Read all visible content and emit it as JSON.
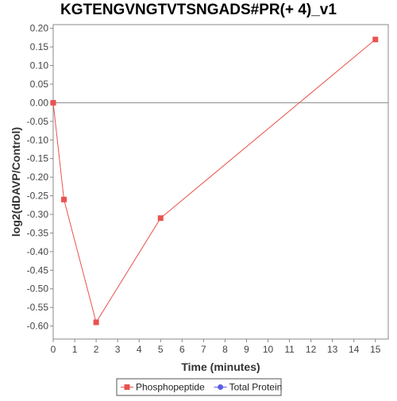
{
  "chart_data": {
    "type": "line",
    "title": "KGTENGVNGTVTSNGADS#PR(+ 4)_v1",
    "xlabel": "Time (minutes)",
    "ylabel": "log2(dDAVP/Control)",
    "xlim": [
      0,
      15.6
    ],
    "ylim": [
      -0.635,
      0.21
    ],
    "x_ticks": [
      "0",
      "1",
      "2",
      "3",
      "4",
      "5",
      "6",
      "7",
      "8",
      "9",
      "10",
      "11",
      "12",
      "13",
      "14",
      "15"
    ],
    "y_ticks": [
      "0.20",
      "0.15",
      "0.10",
      "0.05",
      "0.00",
      "-0.05",
      "-0.10",
      "-0.15",
      "-0.20",
      "-0.25",
      "-0.30",
      "-0.35",
      "-0.40",
      "-0.45",
      "-0.50",
      "-0.55",
      "-0.60"
    ],
    "zero_line": true,
    "grid": false,
    "legend_position": "bottom",
    "series": [
      {
        "name": "Phosphopeptide",
        "color": "#e8534f",
        "marker": "square",
        "x": [
          0,
          0.5,
          2,
          5,
          15
        ],
        "y": [
          0.0,
          -0.26,
          -0.59,
          -0.31,
          0.17
        ]
      },
      {
        "name": "Total Protein",
        "color": "#5b5fe6",
        "marker": "circle",
        "x": [],
        "y": []
      }
    ]
  }
}
